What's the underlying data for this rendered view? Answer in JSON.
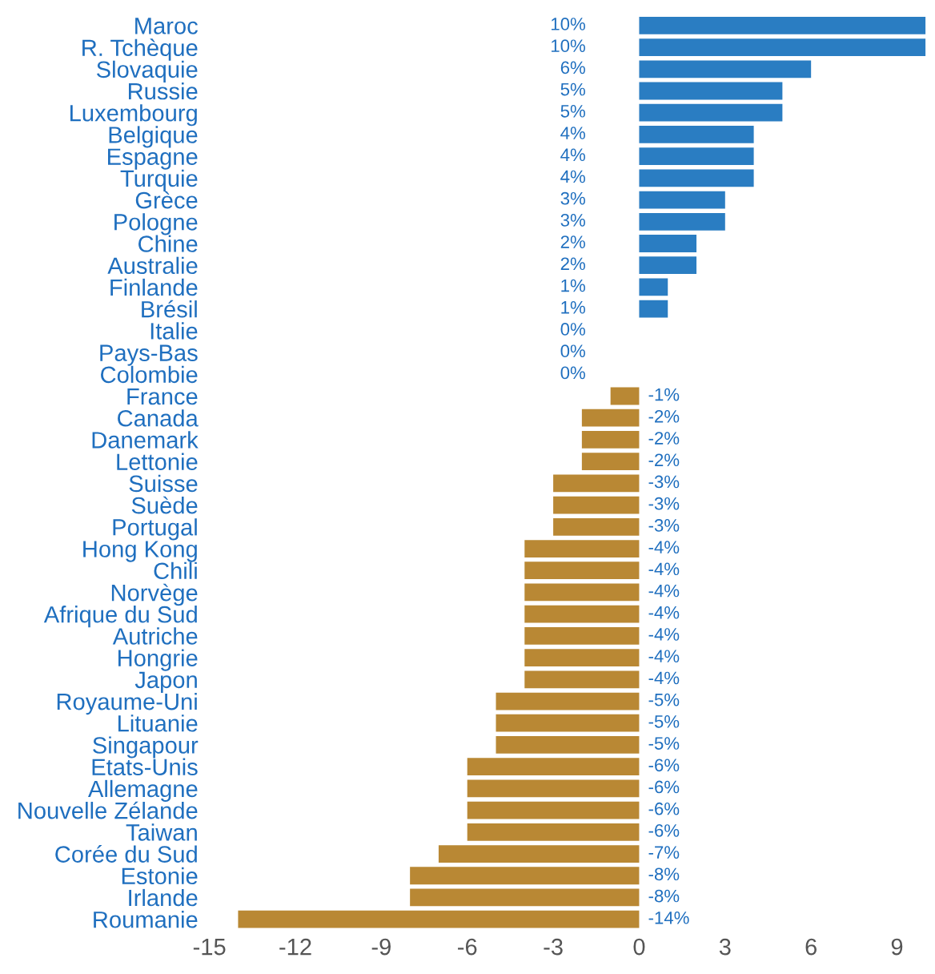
{
  "chart_data": {
    "type": "bar",
    "orientation": "horizontal",
    "categories": [
      "Maroc",
      "R. Tchèque",
      "Slovaquie",
      "Russie",
      "Luxembourg",
      "Belgique",
      "Espagne",
      "Turquie",
      "Grèce",
      "Pologne",
      "Chine",
      "Australie",
      "Finlande",
      "Brésil",
      "Italie",
      "Pays-Bas",
      "Colombie",
      "France",
      "Canada",
      "Danemark",
      "Lettonie",
      "Suisse",
      "Suède",
      "Portugal",
      "Hong Kong",
      "Chili",
      "Norvège",
      "Afrique du Sud",
      "Autriche",
      "Hongrie",
      "Japon",
      "Royaume-Uni",
      "Lituanie",
      "Singapour",
      "Etats-Unis",
      "Allemagne",
      "Nouvelle Zélande",
      "Taiwan",
      "Corée du Sud",
      "Estonie",
      "Irlande",
      "Roumanie"
    ],
    "values": [
      10,
      10,
      6,
      5,
      5,
      4,
      4,
      4,
      3,
      3,
      2,
      2,
      1,
      1,
      0,
      0,
      0,
      -1,
      -2,
      -2,
      -2,
      -3,
      -3,
      -3,
      -4,
      -4,
      -4,
      -4,
      -4,
      -4,
      -4,
      -5,
      -5,
      -5,
      -6,
      -6,
      -6,
      -6,
      -7,
      -8,
      -8,
      -14
    ],
    "value_labels": [
      "10%",
      "10%",
      "6%",
      "5%",
      "5%",
      "4%",
      "4%",
      "4%",
      "3%",
      "3%",
      "2%",
      "2%",
      "1%",
      "1%",
      "0%",
      "0%",
      "0%",
      "-1%",
      "-2%",
      "-2%",
      "-2%",
      "-3%",
      "-3%",
      "-3%",
      "-4%",
      "-4%",
      "-4%",
      "-4%",
      "-4%",
      "-4%",
      "-4%",
      "-5%",
      "-5%",
      "-5%",
      "-6%",
      "-6%",
      "-6%",
      "-6%",
      "-7%",
      "-8%",
      "-8%",
      "-14%"
    ],
    "colors": [
      "#2a7dc2",
      "#2a7dc2",
      "#2a7dc2",
      "#2a7dc2",
      "#2a7dc2",
      "#2a7dc2",
      "#2a7dc2",
      "#2a7dc2",
      "#2a7dc2",
      "#2a7dc2",
      "#2a7dc2",
      "#2a7dc2",
      "#2a7dc2",
      "#2a7dc2",
      "#2a7dc2",
      "#2a7dc2",
      "#2a7dc2",
      "#b98834",
      "#b98834",
      "#b98834",
      "#b98834",
      "#b98834",
      "#b98834",
      "#b98834",
      "#b98834",
      "#b98834",
      "#b98834",
      "#b98834",
      "#b98834",
      "#b98834",
      "#b98834",
      "#b98834",
      "#b98834",
      "#b98834",
      "#b98834",
      "#b98834",
      "#b98834",
      "#b98834",
      "#b98834",
      "#b98834",
      "#b98834",
      "#b98834"
    ],
    "xlim": [
      -15,
      10
    ],
    "xticks": [
      -15,
      -12,
      -9,
      -6,
      -3,
      0,
      3,
      6,
      9
    ],
    "grid": false
  }
}
